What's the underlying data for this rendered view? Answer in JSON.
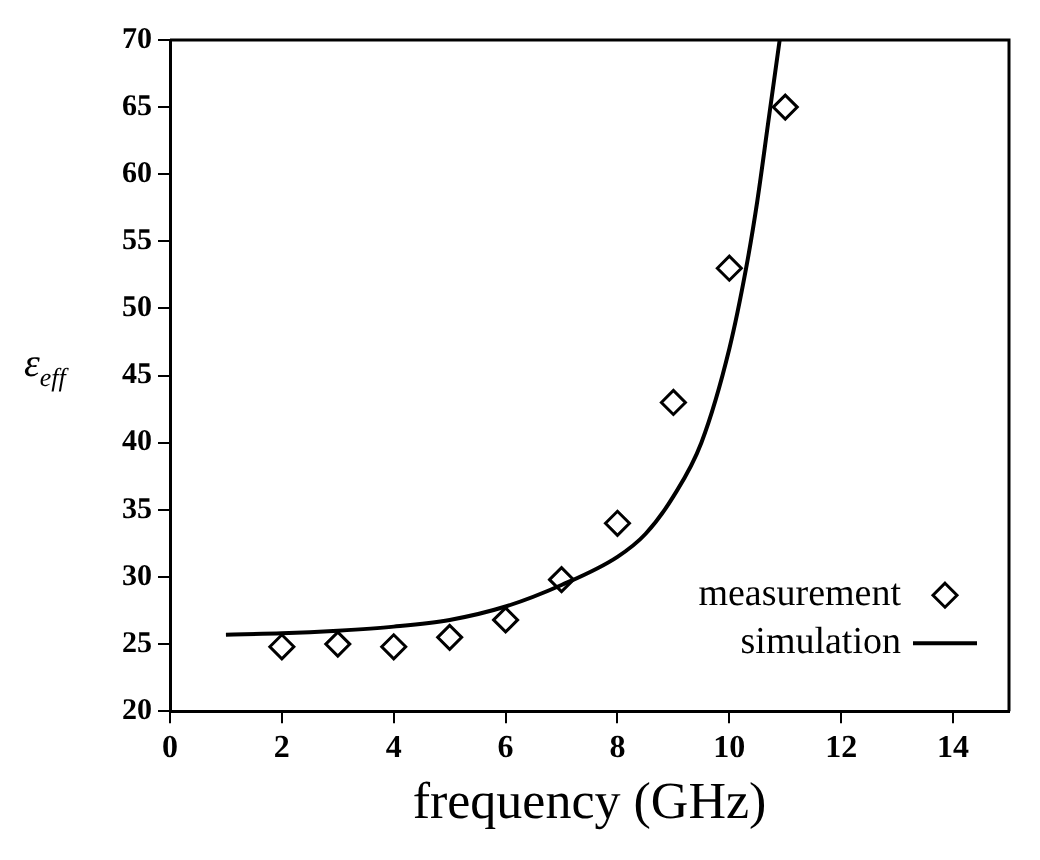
{
  "chart_data": {
    "type": "scatter",
    "xlabel": "frequency (GHz)",
    "ylabel": "ε$_{eff}$",
    "xlim": [
      0,
      15
    ],
    "xticks": [
      0,
      2,
      4,
      6,
      8,
      10,
      12,
      14
    ],
    "ylim": [
      20,
      70
    ],
    "yticks": [
      20,
      25,
      30,
      35,
      40,
      45,
      50,
      55,
      60,
      65,
      70
    ],
    "grid": false,
    "legend": "bottom right",
    "series": [
      {
        "name": "measurement",
        "marker": "diamond",
        "color": "#000000",
        "x": [
          2,
          3,
          4,
          5,
          6,
          7,
          8,
          9,
          10,
          11
        ],
        "values": [
          24.8,
          25,
          24.8,
          25.5,
          26.8,
          29.8,
          34,
          43,
          53,
          65
        ]
      },
      {
        "name": "simulation",
        "type": "line",
        "marker": "none",
        "color": "#000000",
        "x": [
          1,
          2,
          3,
          4,
          5,
          6,
          7,
          8,
          8.5,
          9,
          9.5,
          10,
          10.3,
          10.5,
          10.7,
          10.9
        ],
        "values": [
          25.7,
          25.8,
          26,
          26.3,
          26.8,
          27.8,
          29.4,
          31.5,
          33.2,
          36,
          40,
          47,
          53,
          58,
          64,
          70
        ]
      }
    ]
  }
}
